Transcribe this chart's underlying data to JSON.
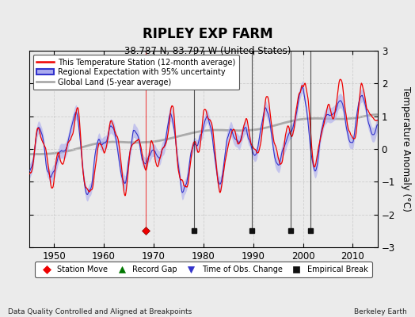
{
  "title": "RIPLEY EXP FARM",
  "subtitle": "38.787 N, 83.797 W (United States)",
  "ylabel": "Temperature Anomaly (°C)",
  "xlim": [
    1945,
    2015
  ],
  "ylim": [
    -3,
    3
  ],
  "yticks": [
    -3,
    -2,
    -1,
    0,
    1,
    2,
    3
  ],
  "xticks": [
    1950,
    1960,
    1970,
    1980,
    1990,
    2000,
    2010
  ],
  "station_color": "#EE0000",
  "regional_color": "#3333CC",
  "regional_fill_color": "#AAAAEE",
  "global_color": "#AAAAAA",
  "background_color": "#EBEBEB",
  "grid_color": "#CCCCCC",
  "legend_items": [
    "This Temperature Station (12-month average)",
    "Regional Expectation with 95% uncertainty",
    "Global Land (5-year average)"
  ],
  "bottom_legend": [
    {
      "label": "Station Move",
      "color": "#EE0000",
      "marker": "D"
    },
    {
      "label": "Record Gap",
      "color": "#007700",
      "marker": "^"
    },
    {
      "label": "Time of Obs. Change",
      "color": "#3333CC",
      "marker": "v"
    },
    {
      "label": "Empirical Break",
      "color": "#111111",
      "marker": "s"
    }
  ],
  "station_moves": [
    1968.5
  ],
  "obs_changes": [],
  "empirical_breaks": [
    1978.2,
    1989.8,
    1997.5,
    2001.5
  ],
  "footer_left": "Data Quality Controlled and Aligned at Breakpoints",
  "footer_right": "Berkeley Earth"
}
